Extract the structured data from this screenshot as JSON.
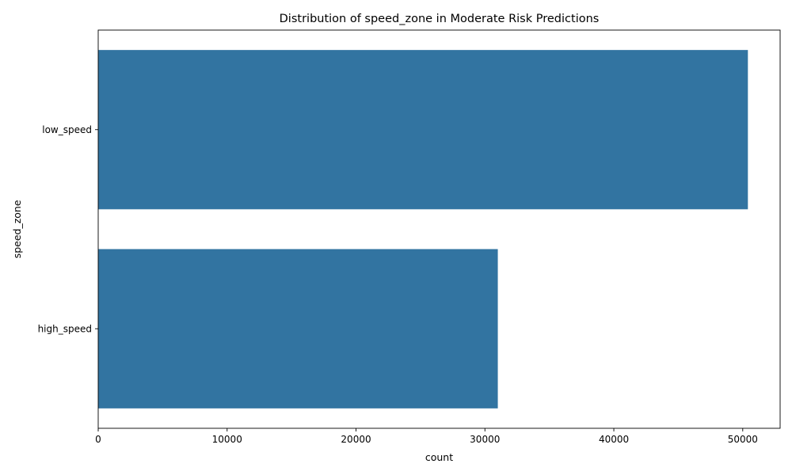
{
  "chart_data": {
    "type": "bar",
    "orientation": "horizontal",
    "title": "Distribution of speed_zone in Moderate Risk Predictions",
    "xlabel": "count",
    "ylabel": "speed_zone",
    "categories": [
      "low_speed",
      "high_speed"
    ],
    "values": [
      50400,
      31000
    ],
    "xlim": [
      0,
      52900
    ],
    "xticks": [
      0,
      10000,
      20000,
      30000,
      40000,
      50000
    ],
    "xtick_labels": [
      "0",
      "10000",
      "20000",
      "30000",
      "40000",
      "50000"
    ],
    "bar_color": "#3274a1",
    "grid": false,
    "legend": "none"
  }
}
